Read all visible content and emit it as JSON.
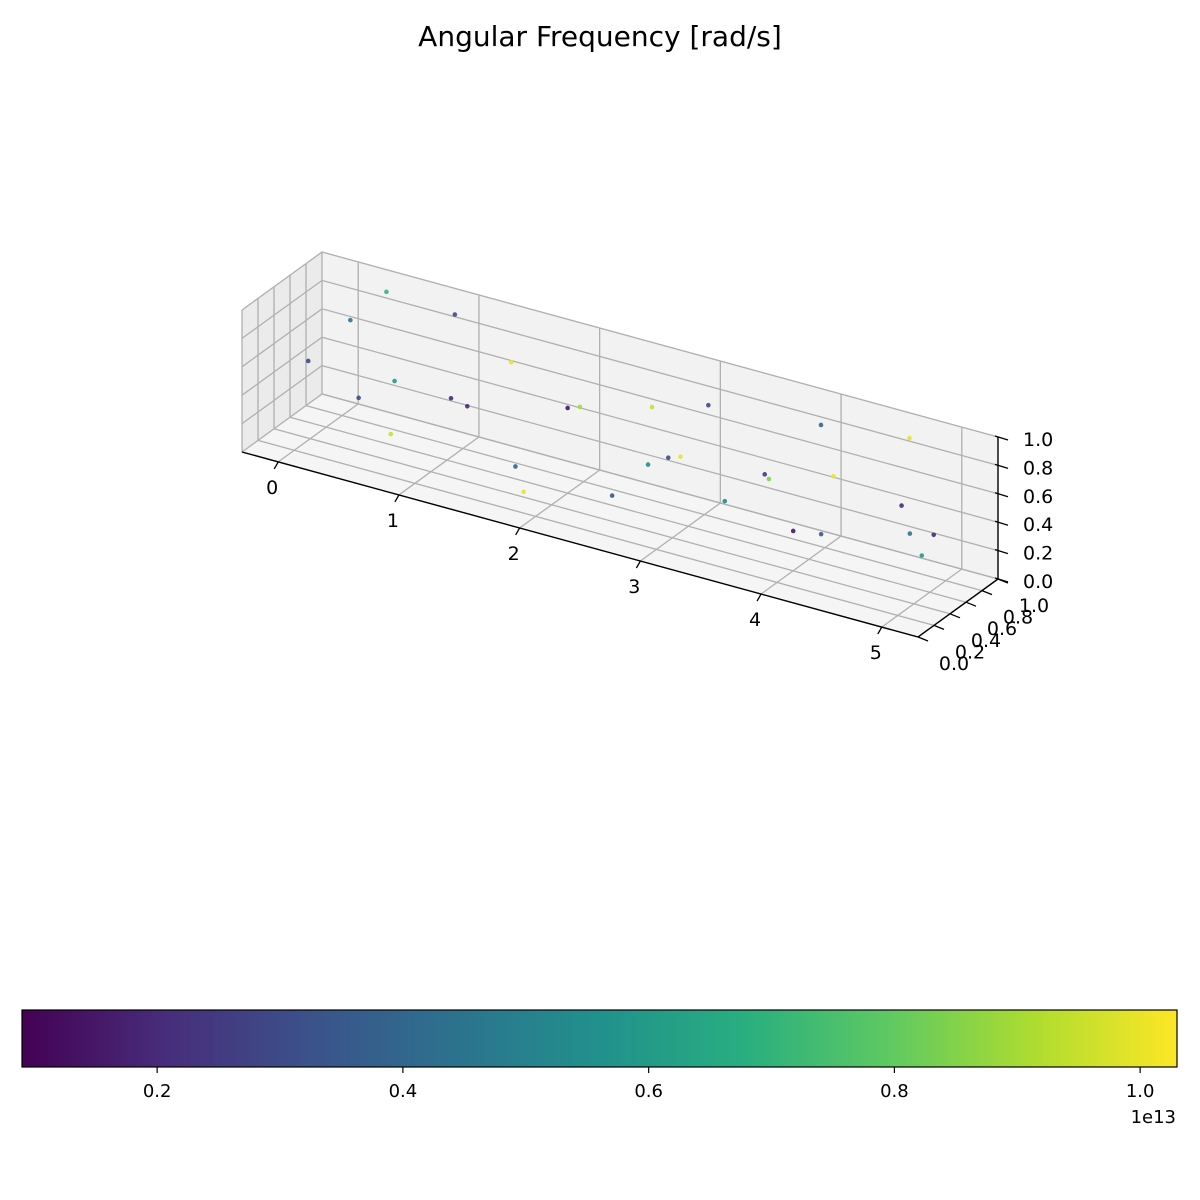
{
  "chart_data": {
    "type": "scatter",
    "projection": "3d",
    "title": "Angular Frequency [rad/s]",
    "xlim": [
      -0.3,
      5.3
    ],
    "ylim": [
      0,
      1
    ],
    "zlim": [
      0,
      1
    ],
    "grid": true,
    "x_ticks": [
      "0",
      "1",
      "2",
      "3",
      "4",
      "5"
    ],
    "y_ticks": [
      "0.0",
      "0.2",
      "0.4",
      "0.6",
      "0.8",
      "1.0"
    ],
    "z_ticks": [
      "0.0",
      "0.2",
      "0.4",
      "0.6",
      "0.8",
      "1.0"
    ],
    "colorbar": {
      "colormap": "viridis",
      "orientation": "horizontal",
      "range": [
        0.09,
        1.03
      ],
      "ticks": [
        "0.2",
        "0.4",
        "0.6",
        "0.8",
        "1.0"
      ],
      "offset_label": "1e13"
    },
    "points": [
      {
        "x": 0.05,
        "y": 0.3,
        "z": 0.6,
        "c": 0.3
      },
      {
        "x": 0.2,
        "y": 0.6,
        "z": 0.8,
        "c": 0.45
      },
      {
        "x": 0.5,
        "y": 0.7,
        "z": 0.4,
        "c": 0.6
      },
      {
        "x": 0.8,
        "y": 0.2,
        "z": 0.3,
        "c": 0.95
      },
      {
        "x": 1.1,
        "y": 0.5,
        "z": 0.5,
        "c": 0.2
      },
      {
        "x": 1.4,
        "y": 0.8,
        "z": 0.7,
        "c": 1.0
      },
      {
        "x": 1.7,
        "y": 0.4,
        "z": 0.2,
        "c": 0.4
      },
      {
        "x": 2.0,
        "y": 0.6,
        "z": 0.6,
        "c": 0.15
      },
      {
        "x": 2.3,
        "y": 0.3,
        "z": 0.8,
        "c": 0.9
      },
      {
        "x": 2.6,
        "y": 0.7,
        "z": 0.3,
        "c": 0.55
      },
      {
        "x": 2.9,
        "y": 0.5,
        "z": 0.5,
        "c": 0.3
      },
      {
        "x": 3.2,
        "y": 0.2,
        "z": 0.7,
        "c": 1.0
      },
      {
        "x": 3.5,
        "y": 0.8,
        "z": 0.4,
        "c": 0.25
      },
      {
        "x": 3.8,
        "y": 0.4,
        "z": 0.6,
        "c": 0.85
      },
      {
        "x": 4.1,
        "y": 0.6,
        "z": 0.2,
        "c": 0.35
      },
      {
        "x": 4.4,
        "y": 0.3,
        "z": 0.8,
        "c": 1.0
      },
      {
        "x": 4.7,
        "y": 0.7,
        "z": 0.5,
        "c": 0.2
      },
      {
        "x": 5.0,
        "y": 0.5,
        "z": 0.3,
        "c": 0.6
      },
      {
        "x": 0.3,
        "y": 0.9,
        "z": 0.9,
        "c": 0.7
      },
      {
        "x": 0.9,
        "y": 0.85,
        "z": 0.9,
        "c": 0.3
      },
      {
        "x": 1.5,
        "y": 0.1,
        "z": 0.7,
        "c": 0.2
      },
      {
        "x": 2.5,
        "y": 0.9,
        "z": 0.6,
        "c": 0.95
      },
      {
        "x": 3.0,
        "y": 0.85,
        "z": 0.75,
        "c": 0.3
      },
      {
        "x": 3.9,
        "y": 0.9,
        "z": 0.8,
        "c": 0.4
      },
      {
        "x": 4.6,
        "y": 0.95,
        "z": 0.85,
        "c": 1.0
      },
      {
        "x": 4.2,
        "y": 0.1,
        "z": 0.45,
        "c": 0.15
      },
      {
        "x": 3.6,
        "y": 0.15,
        "z": 0.5,
        "c": 0.55
      },
      {
        "x": 2.7,
        "y": 0.1,
        "z": 0.35,
        "c": 0.35
      },
      {
        "x": 1.9,
        "y": 0.2,
        "z": 0.15,
        "c": 1.0
      },
      {
        "x": 0.6,
        "y": 0.1,
        "z": 0.55,
        "c": 0.3
      },
      {
        "x": 5.1,
        "y": 0.2,
        "z": 0.6,
        "c": 0.45
      },
      {
        "x": 4.9,
        "y": 0.8,
        "z": 0.3,
        "c": 0.2
      }
    ]
  }
}
